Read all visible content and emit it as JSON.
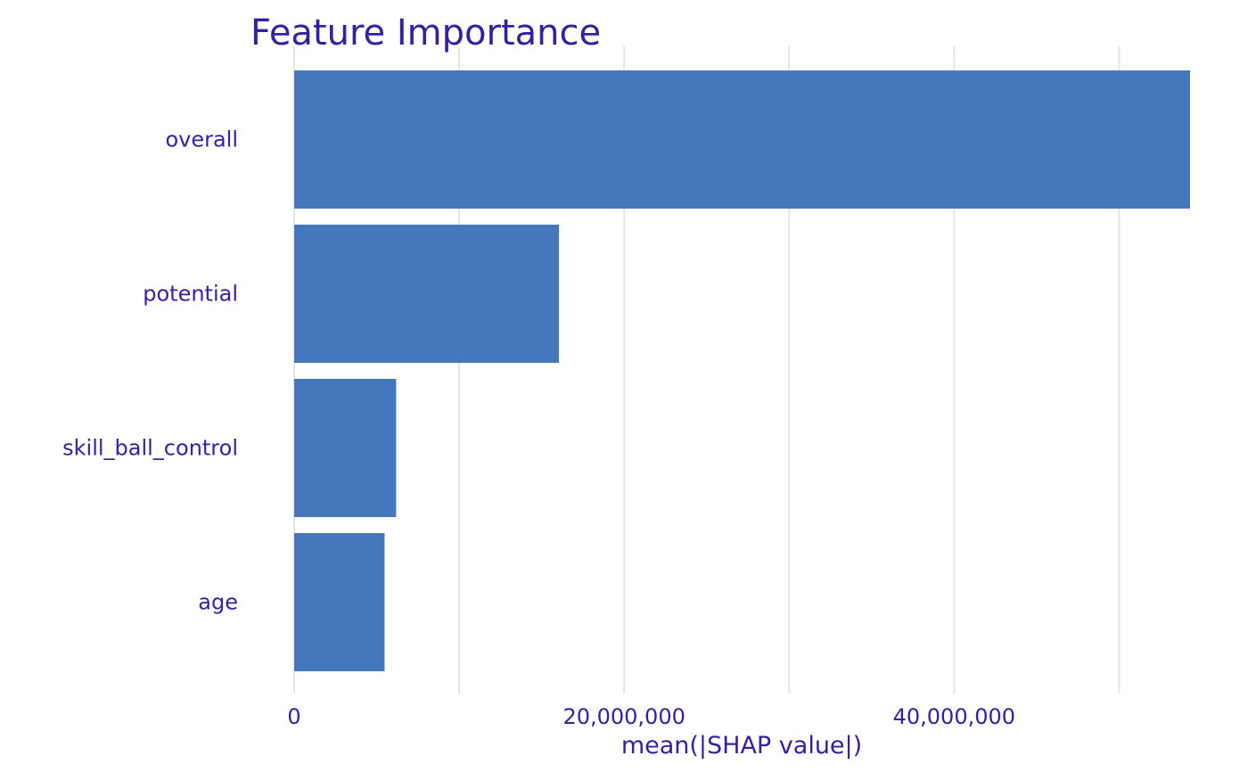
{
  "chart_data": {
    "type": "bar",
    "orientation": "horizontal",
    "title": "Feature Importance",
    "xlabel": "mean(|SHAP value|)",
    "ylabel": "",
    "categories": [
      "overall",
      "potential",
      "skill_ball_control",
      "age"
    ],
    "values": [
      54300000,
      16050000,
      6180000,
      5480000
    ],
    "xlim": [
      0,
      54300000
    ],
    "major_ticks": [
      0,
      20000000,
      40000000
    ],
    "major_tick_labels": [
      "0",
      "20,000,000",
      "40,000,000"
    ],
    "minor_gridlines": [
      10000000,
      30000000,
      50000000
    ],
    "grid": true,
    "legend": "none"
  },
  "colors": {
    "bar": "#4477bb",
    "text": "#3322a0",
    "grid": "#e4e4e4"
  }
}
